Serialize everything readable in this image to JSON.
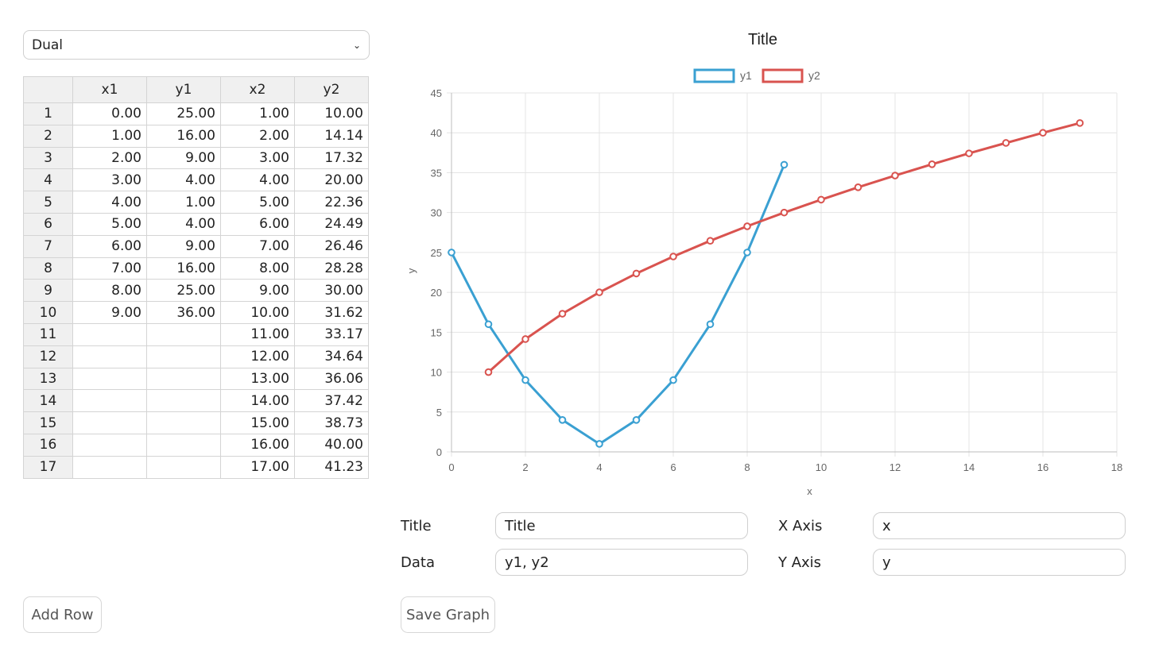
{
  "mode_select": {
    "value": "Dual"
  },
  "table": {
    "headers": [
      "",
      "x1",
      "y1",
      "x2",
      "y2"
    ],
    "rows": [
      [
        "1",
        "0.00",
        "25.00",
        "1.00",
        "10.00"
      ],
      [
        "2",
        "1.00",
        "16.00",
        "2.00",
        "14.14"
      ],
      [
        "3",
        "2.00",
        "9.00",
        "3.00",
        "17.32"
      ],
      [
        "4",
        "3.00",
        "4.00",
        "4.00",
        "20.00"
      ],
      [
        "5",
        "4.00",
        "1.00",
        "5.00",
        "22.36"
      ],
      [
        "6",
        "5.00",
        "4.00",
        "6.00",
        "24.49"
      ],
      [
        "7",
        "6.00",
        "9.00",
        "7.00",
        "26.46"
      ],
      [
        "8",
        "7.00",
        "16.00",
        "8.00",
        "28.28"
      ],
      [
        "9",
        "8.00",
        "25.00",
        "9.00",
        "30.00"
      ],
      [
        "10",
        "9.00",
        "36.00",
        "10.00",
        "31.62"
      ],
      [
        "11",
        "",
        "",
        "11.00",
        "33.17"
      ],
      [
        "12",
        "",
        "",
        "12.00",
        "34.64"
      ],
      [
        "13",
        "",
        "",
        "13.00",
        "36.06"
      ],
      [
        "14",
        "",
        "",
        "14.00",
        "37.42"
      ],
      [
        "15",
        "",
        "",
        "15.00",
        "38.73"
      ],
      [
        "16",
        "",
        "",
        "16.00",
        "40.00"
      ],
      [
        "17",
        "",
        "",
        "17.00",
        "41.23"
      ]
    ]
  },
  "chart_data": {
    "type": "line",
    "title": "Title",
    "xlabel": "x",
    "ylabel": "y",
    "xlim": [
      0,
      18
    ],
    "ylim": [
      0,
      45
    ],
    "xticks": [
      0,
      2,
      4,
      6,
      8,
      10,
      12,
      14,
      16,
      18
    ],
    "yticks": [
      0,
      5,
      10,
      15,
      20,
      25,
      30,
      35,
      40,
      45
    ],
    "grid": true,
    "legend_position": "top-center",
    "series": [
      {
        "name": "y1",
        "color": "#3aa0d2",
        "x": [
          0,
          1,
          2,
          3,
          4,
          5,
          6,
          7,
          8,
          9
        ],
        "y": [
          25,
          16,
          9,
          4,
          1,
          4,
          9,
          16,
          25,
          36
        ]
      },
      {
        "name": "y2",
        "color": "#d9534f",
        "x": [
          1,
          2,
          3,
          4,
          5,
          6,
          7,
          8,
          9,
          10,
          11,
          12,
          13,
          14,
          15,
          16,
          17
        ],
        "y": [
          10,
          14.14,
          17.32,
          20,
          22.36,
          24.49,
          26.46,
          28.28,
          30,
          31.62,
          33.17,
          34.64,
          36.06,
          37.42,
          38.73,
          40,
          41.23
        ]
      }
    ]
  },
  "form": {
    "title_label": "Title",
    "title_value": "Title",
    "data_label": "Data",
    "data_value": "y1, y2",
    "xaxis_label": "X Axis",
    "xaxis_value": "x",
    "yaxis_label": "Y Axis",
    "yaxis_value": "y"
  },
  "buttons": {
    "add_row": "Add Row",
    "save_graph": "Save Graph"
  }
}
